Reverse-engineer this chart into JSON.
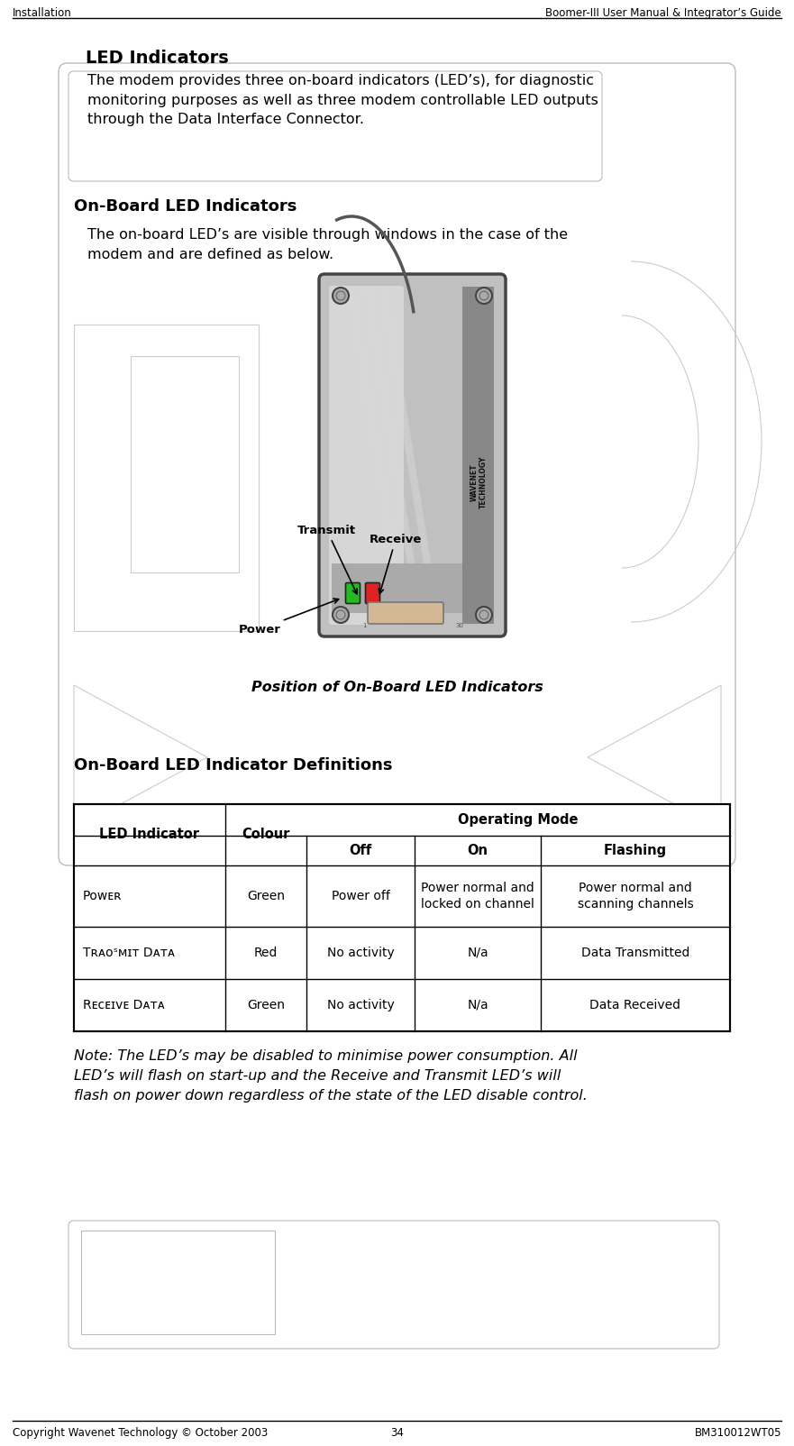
{
  "header_left": "Installation",
  "header_right": "Boomer-III User Manual & Integrator’s Guide",
  "footer_left": "Copyright Wavenet Technology © October 2003",
  "footer_center": "34",
  "footer_right": "BM310012WT05",
  "title1": "LED Indicators",
  "body1": "The modem provides three on-board indicators (LED’s), for diagnostic\nmonitoring purposes as well as three modem controllable LED outputs\nthrough the Data Interface Connector.",
  "title2": "On-Board LED Indicators",
  "body2": "The on-board LED’s are visible through windows in the case of the\nmodem and are defined as below.",
  "caption": "Position of On-Board LED Indicators",
  "title3": "On-Board LED Indicator Definitions",
  "note": "Note: The LED’s may be disabled to minimise power consumption. All\nLED’s will flash on start-up and the Receive and Transmit LED’s will\nflash on power down regardless of the state of the LED disable control.",
  "bg_color": "#ffffff",
  "text_color": "#000000",
  "line_color": "#000000",
  "deco_color": "#cccccc",
  "table_border": "#000000",
  "modem_body": "#c0c0c0",
  "modem_dark": "#808080",
  "modem_light": "#e8e8e8",
  "led_green": "#22bb22",
  "led_red": "#dd2222",
  "conn_color": "#d4b896"
}
